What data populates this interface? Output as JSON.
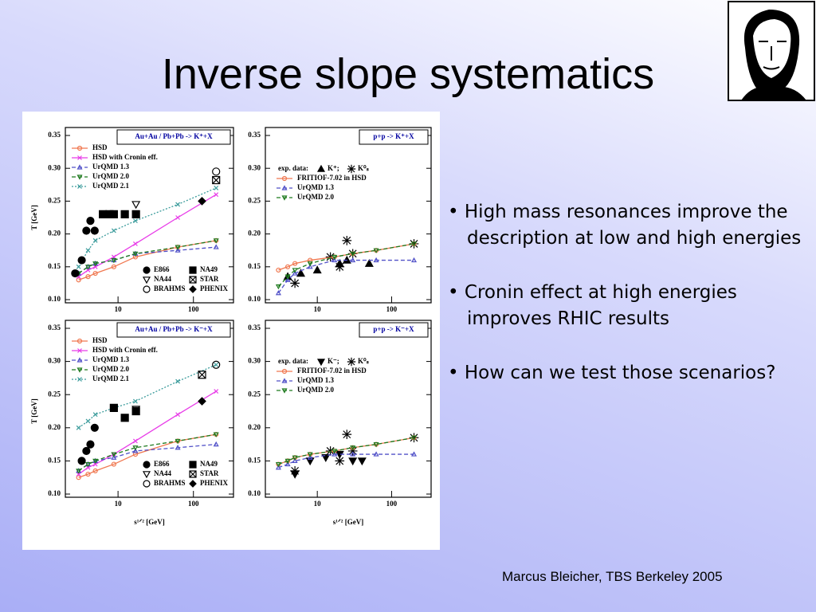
{
  "slide": {
    "title": "Inverse slope systematics",
    "bullets": [
      "High mass resonances improve the description at low and high energies",
      "Cronin effect at high energies improves RHIC results",
      "How can we test those scenarios?"
    ],
    "footer": "Marcus Bleicher, TBS Berkeley 2005"
  },
  "chart_data": [
    {
      "type": "line",
      "title": "Au+Au / Pb+Pb  -> K⁺+X",
      "ylabel": "T [GeV]",
      "log_x": true,
      "xlim": [
        2,
        340
      ],
      "xticks": [
        10,
        100
      ],
      "ylim": [
        0.1,
        0.35
      ],
      "yticks": [
        {
          "value": 0.1,
          "label": "0.10"
        },
        {
          "value": 0.15,
          "label": "0.15"
        },
        {
          "value": 0.2,
          "label": "0.20"
        },
        {
          "value": 0.25,
          "label": "0.25"
        },
        {
          "value": 0.3,
          "label": "0.30"
        },
        {
          "value": 0.35,
          "label": "0.35"
        }
      ],
      "series": [
        {
          "name": "HSD",
          "color": "#f07850",
          "marker": "open-circle",
          "line": "solid",
          "x": [
            3,
            4,
            5,
            8.8,
            17,
            62,
            200
          ],
          "values": [
            0.13,
            0.135,
            0.14,
            0.15,
            0.165,
            0.18,
            0.19
          ]
        },
        {
          "name": "HSD with Cronin eff.",
          "color": "#e83ce8",
          "marker": "x",
          "line": "solid",
          "x": [
            3,
            4,
            5,
            8.8,
            17,
            62,
            200
          ],
          "values": [
            0.135,
            0.145,
            0.15,
            0.165,
            0.185,
            0.225,
            0.26
          ]
        },
        {
          "name": "UrQMD 1.3",
          "color": "#5050c8",
          "marker": "open-triangle-up",
          "line": "dashed",
          "x": [
            3,
            4,
            5,
            8.8,
            17,
            62,
            200
          ],
          "values": [
            0.14,
            0.15,
            0.155,
            0.16,
            0.17,
            0.175,
            0.18
          ]
        },
        {
          "name": "UrQMD 2.0",
          "color": "#1e7a1e",
          "marker": "open-triangle-down",
          "line": "dashed",
          "x": [
            3,
            4,
            5,
            8.8,
            17,
            62,
            200
          ],
          "values": [
            0.14,
            0.15,
            0.155,
            0.16,
            0.17,
            0.18,
            0.19
          ]
        },
        {
          "name": "UrQMD 2.1",
          "color": "#3c9c9c",
          "marker": "x",
          "line": "dotted",
          "x": [
            3,
            4,
            5,
            8.8,
            17,
            62,
            200
          ],
          "values": [
            0.15,
            0.175,
            0.19,
            0.205,
            0.22,
            0.245,
            0.27
          ]
        },
        {
          "name": "E866",
          "color": "#000000",
          "marker": "circle",
          "line": "none",
          "x": [
            2.7,
            3.3,
            3.8,
            4.3,
            4.9
          ],
          "values": [
            0.14,
            0.16,
            0.205,
            0.22,
            0.205
          ]
        },
        {
          "name": "NA44",
          "color": "#000000",
          "marker": "open-triangle-down",
          "line": "none",
          "x": [
            17.3
          ],
          "values": [
            0.245
          ]
        },
        {
          "name": "BRAHMS",
          "color": "#000000",
          "marker": "open-circle",
          "line": "none",
          "x": [
            200
          ],
          "values": [
            0.295
          ]
        },
        {
          "name": "NA49",
          "color": "#000000",
          "marker": "square",
          "line": "none",
          "x": [
            6.3,
            7.7,
            8.8,
            12.3,
            17.3
          ],
          "values": [
            0.23,
            0.23,
            0.23,
            0.23,
            0.23
          ]
        },
        {
          "name": "STAR",
          "color": "#000000",
          "marker": "box-x",
          "line": "none",
          "x": [
            200
          ],
          "values": [
            0.282
          ]
        },
        {
          "name": "PHENIX",
          "color": "#000000",
          "marker": "diamond",
          "line": "none",
          "x": [
            130
          ],
          "values": [
            0.25
          ]
        }
      ]
    },
    {
      "type": "line",
      "title": "p+p -> K⁺+X",
      "legend_title": "exp. data:",
      "log_x": true,
      "xlim": [
        2,
        340
      ],
      "xticks": [
        10,
        100
      ],
      "ylim": [
        0.1,
        0.35
      ],
      "yticks": [
        {
          "value": 0.1,
          "label": "0.10"
        },
        {
          "value": 0.15,
          "label": "0.15"
        },
        {
          "value": 0.2,
          "label": "0.20"
        },
        {
          "value": 0.25,
          "label": "0.25"
        },
        {
          "value": 0.3,
          "label": "0.30"
        },
        {
          "value": 0.35,
          "label": "0.35"
        }
      ],
      "series": [
        {
          "name": "K⁺;",
          "color": "#000000",
          "marker": "triangle-up",
          "line": "none",
          "x": [
            4,
            6,
            10,
            20,
            25,
            50
          ],
          "values": [
            0.135,
            0.14,
            0.145,
            0.155,
            0.16,
            0.155
          ]
        },
        {
          "name": "K⁰ₛ",
          "color": "#000000",
          "marker": "star",
          "line": "none",
          "x": [
            5,
            15,
            20,
            25,
            30,
            200
          ],
          "values": [
            0.125,
            0.165,
            0.15,
            0.19,
            0.17,
            0.185
          ]
        },
        {
          "name": "FRITIOF-7.02 in HSD",
          "color": "#f07850",
          "marker": "open-circle",
          "line": "solid",
          "x": [
            3,
            4,
            5,
            8,
            17,
            30,
            62,
            200
          ],
          "values": [
            0.145,
            0.15,
            0.155,
            0.16,
            0.165,
            0.17,
            0.175,
            0.185
          ]
        },
        {
          "name": "UrQMD 1.3",
          "color": "#5050c8",
          "marker": "open-triangle-up",
          "line": "dashed",
          "x": [
            3,
            4,
            5,
            8,
            17,
            30,
            62,
            200
          ],
          "values": [
            0.11,
            0.13,
            0.14,
            0.15,
            0.16,
            0.16,
            0.16,
            0.16
          ]
        },
        {
          "name": "UrQMD 2.0",
          "color": "#1e7a1e",
          "marker": "open-triangle-down",
          "line": "dashed",
          "x": [
            3,
            4,
            5,
            8,
            17,
            30,
            62,
            200
          ],
          "values": [
            0.12,
            0.135,
            0.145,
            0.155,
            0.165,
            0.17,
            0.175,
            0.185
          ]
        }
      ]
    },
    {
      "type": "line",
      "title": "Au+Au / Pb+Pb  -> K⁻+X",
      "ylabel": "T [GeV]",
      "xlabel": "s¹ᐟ² [GeV]",
      "log_x": true,
      "xlim": [
        2,
        340
      ],
      "xticks": [
        10,
        100
      ],
      "ylim": [
        0.1,
        0.35
      ],
      "yticks": [
        {
          "value": 0.1,
          "label": "0.10"
        },
        {
          "value": 0.15,
          "label": "0.15"
        },
        {
          "value": 0.2,
          "label": "0.20"
        },
        {
          "value": 0.25,
          "label": "0.25"
        },
        {
          "value": 0.3,
          "label": "0.30"
        },
        {
          "value": 0.35,
          "label": "0.35"
        }
      ],
      "series": [
        {
          "name": "HSD",
          "color": "#f07850",
          "marker": "open-circle",
          "line": "solid",
          "x": [
            3,
            4,
            5,
            8.8,
            17,
            62,
            200
          ],
          "values": [
            0.125,
            0.13,
            0.135,
            0.145,
            0.16,
            0.18,
            0.19
          ]
        },
        {
          "name": "HSD with Cronin eff.",
          "color": "#e83ce8",
          "marker": "x",
          "line": "solid",
          "x": [
            3,
            4,
            5,
            8.8,
            17,
            62,
            200
          ],
          "values": [
            0.13,
            0.14,
            0.145,
            0.16,
            0.18,
            0.22,
            0.255
          ]
        },
        {
          "name": "UrQMD 1.3",
          "color": "#5050c8",
          "marker": "open-triangle-up",
          "line": "dashed",
          "x": [
            3,
            4,
            5,
            8.8,
            17,
            62,
            200
          ],
          "values": [
            0.135,
            0.145,
            0.15,
            0.155,
            0.165,
            0.17,
            0.175
          ]
        },
        {
          "name": "UrQMD 2.0",
          "color": "#1e7a1e",
          "marker": "open-triangle-down",
          "line": "dashed",
          "x": [
            3,
            4,
            5,
            8.8,
            17,
            62,
            200
          ],
          "values": [
            0.135,
            0.145,
            0.15,
            0.16,
            0.17,
            0.18,
            0.19
          ]
        },
        {
          "name": "UrQMD 2.1",
          "color": "#3c9c9c",
          "marker": "x",
          "line": "dotted",
          "x": [
            3,
            4,
            5,
            8.8,
            17,
            62,
            200
          ],
          "values": [
            0.2,
            0.21,
            0.22,
            0.23,
            0.24,
            0.27,
            0.295
          ]
        },
        {
          "name": "E866",
          "color": "#000000",
          "marker": "circle",
          "line": "none",
          "x": [
            3.3,
            3.8,
            4.3,
            4.9
          ],
          "values": [
            0.15,
            0.165,
            0.175,
            0.2
          ]
        },
        {
          "name": "NA44",
          "color": "#000000",
          "marker": "open-triangle-down",
          "line": "none",
          "x": [
            17.3
          ],
          "values": [
            0.228
          ]
        },
        {
          "name": "BRAHMS",
          "color": "#000000",
          "marker": "open-circle",
          "line": "none",
          "x": [
            200
          ],
          "values": [
            0.295
          ]
        },
        {
          "name": "NA49",
          "color": "#000000",
          "marker": "square",
          "line": "none",
          "x": [
            8.8,
            12.3,
            17.3
          ],
          "values": [
            0.23,
            0.215,
            0.225
          ]
        },
        {
          "name": "STAR",
          "color": "#000000",
          "marker": "box-x",
          "line": "none",
          "x": [
            130
          ],
          "values": [
            0.28
          ]
        },
        {
          "name": "PHENIX",
          "color": "#000000",
          "marker": "diamond",
          "line": "none",
          "x": [
            130
          ],
          "values": [
            0.24
          ]
        }
      ]
    },
    {
      "type": "line",
      "title": "p+p -> K⁻+X",
      "legend_title": "exp. data:",
      "xlabel": "s¹ᐟ² [GeV]",
      "log_x": true,
      "xlim": [
        2,
        340
      ],
      "xticks": [
        10,
        100
      ],
      "ylim": [
        0.1,
        0.35
      ],
      "yticks": [
        {
          "value": 0.1,
          "label": "0.10"
        },
        {
          "value": 0.15,
          "label": "0.15"
        },
        {
          "value": 0.2,
          "label": "0.20"
        },
        {
          "value": 0.25,
          "label": "0.25"
        },
        {
          "value": 0.3,
          "label": "0.30"
        },
        {
          "value": 0.35,
          "label": "0.35"
        }
      ],
      "series": [
        {
          "name": "K⁻;",
          "color": "#000000",
          "marker": "triangle-down",
          "line": "none",
          "x": [
            5,
            8,
            13,
            20,
            30,
            40
          ],
          "values": [
            0.13,
            0.15,
            0.155,
            0.16,
            0.15,
            0.15
          ]
        },
        {
          "name": "K⁰ₛ",
          "color": "#000000",
          "marker": "star",
          "line": "none",
          "x": [
            5,
            15,
            20,
            25,
            30,
            200
          ],
          "values": [
            0.135,
            0.165,
            0.15,
            0.19,
            0.165,
            0.185
          ]
        },
        {
          "name": "FRITIOF-7.02 in HSD",
          "color": "#f07850",
          "marker": "open-circle",
          "line": "solid",
          "x": [
            3,
            4,
            5,
            8,
            17,
            30,
            62,
            200
          ],
          "values": [
            0.145,
            0.15,
            0.155,
            0.16,
            0.165,
            0.17,
            0.175,
            0.185
          ]
        },
        {
          "name": "UrQMD 1.3",
          "color": "#5050c8",
          "marker": "open-triangle-up",
          "line": "dashed",
          "x": [
            3,
            4,
            5,
            8,
            17,
            30,
            62,
            200
          ],
          "values": [
            0.14,
            0.145,
            0.15,
            0.155,
            0.16,
            0.16,
            0.16,
            0.16
          ]
        },
        {
          "name": "UrQMD 2.0",
          "color": "#1e7a1e",
          "marker": "open-triangle-down",
          "line": "dashed",
          "x": [
            3,
            4,
            5,
            8,
            17,
            30,
            62,
            200
          ],
          "values": [
            0.145,
            0.15,
            0.155,
            0.16,
            0.165,
            0.17,
            0.175,
            0.185
          ]
        }
      ]
    }
  ]
}
